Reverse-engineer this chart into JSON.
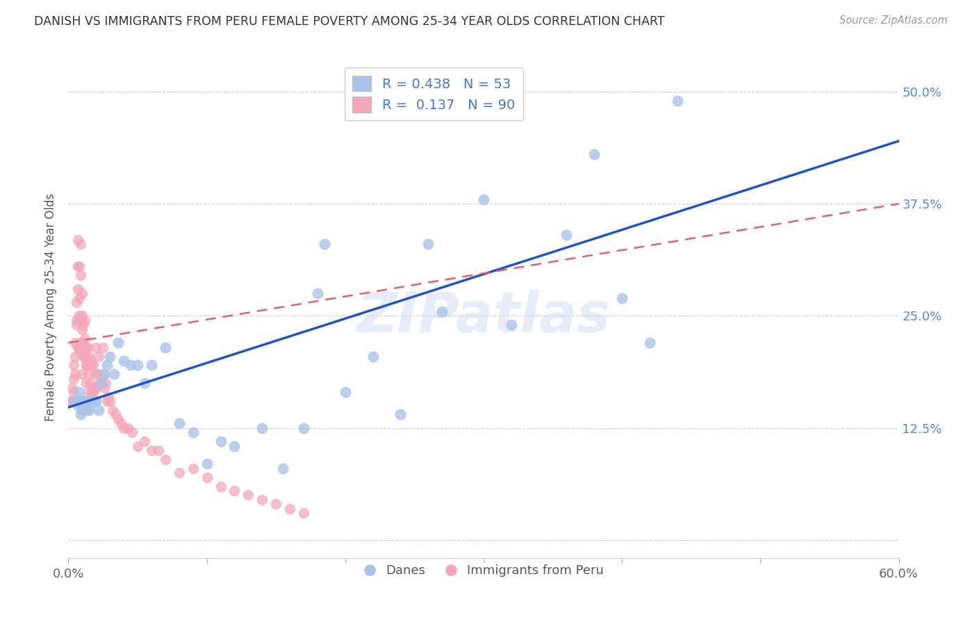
{
  "title": "DANISH VS IMMIGRANTS FROM PERU FEMALE POVERTY AMONG 25-34 YEAR OLDS CORRELATION CHART",
  "source": "Source: ZipAtlas.com",
  "ylabel": "Female Poverty Among 25-34 Year Olds",
  "xlim": [
    0.0,
    0.6
  ],
  "ylim": [
    -0.02,
    0.54
  ],
  "xticks": [
    0.0,
    0.1,
    0.2,
    0.3,
    0.4,
    0.5,
    0.6
  ],
  "xticklabels": [
    "0.0%",
    "",
    "",
    "",
    "",
    "",
    "60.0%"
  ],
  "ytick_positions": [
    0.0,
    0.125,
    0.25,
    0.375,
    0.5
  ],
  "ytick_labels_right": [
    "",
    "12.5%",
    "25.0%",
    "37.5%",
    "50.0%"
  ],
  "danes_color": "#aac4e8",
  "peru_color": "#f4a7b9",
  "danes_line_color": "#2255bb",
  "peru_line_color": "#e06070",
  "watermark": "ZIPatlas",
  "danes_x": [
    0.005,
    0.006,
    0.007,
    0.008,
    0.009,
    0.009,
    0.01,
    0.01,
    0.011,
    0.012,
    0.013,
    0.014,
    0.015,
    0.016,
    0.017,
    0.018,
    0.019,
    0.02,
    0.022,
    0.024,
    0.026,
    0.028,
    0.03,
    0.033,
    0.036,
    0.04,
    0.045,
    0.05,
    0.055,
    0.06,
    0.07,
    0.08,
    0.09,
    0.1,
    0.11,
    0.12,
    0.14,
    0.155,
    0.17,
    0.185,
    0.2,
    0.22,
    0.24,
    0.27,
    0.3,
    0.32,
    0.36,
    0.4,
    0.42,
    0.44,
    0.18,
    0.26,
    0.38
  ],
  "danes_y": [
    0.155,
    0.155,
    0.15,
    0.165,
    0.155,
    0.14,
    0.155,
    0.145,
    0.155,
    0.155,
    0.145,
    0.15,
    0.145,
    0.155,
    0.155,
    0.155,
    0.155,
    0.155,
    0.145,
    0.175,
    0.185,
    0.195,
    0.205,
    0.185,
    0.22,
    0.2,
    0.195,
    0.195,
    0.175,
    0.195,
    0.215,
    0.13,
    0.12,
    0.085,
    0.11,
    0.105,
    0.125,
    0.08,
    0.125,
    0.33,
    0.165,
    0.205,
    0.14,
    0.255,
    0.38,
    0.24,
    0.34,
    0.27,
    0.22,
    0.49,
    0.275,
    0.33,
    0.43
  ],
  "peru_x": [
    0.002,
    0.003,
    0.003,
    0.004,
    0.004,
    0.004,
    0.005,
    0.005,
    0.006,
    0.006,
    0.007,
    0.007,
    0.007,
    0.008,
    0.008,
    0.008,
    0.009,
    0.009,
    0.009,
    0.009,
    0.01,
    0.01,
    0.01,
    0.01,
    0.011,
    0.011,
    0.012,
    0.012,
    0.012,
    0.013,
    0.013,
    0.013,
    0.014,
    0.014,
    0.015,
    0.015,
    0.015,
    0.016,
    0.016,
    0.017,
    0.017,
    0.018,
    0.018,
    0.019,
    0.02,
    0.02,
    0.021,
    0.022,
    0.023,
    0.024,
    0.025,
    0.026,
    0.027,
    0.028,
    0.029,
    0.03,
    0.032,
    0.034,
    0.036,
    0.038,
    0.04,
    0.043,
    0.046,
    0.05,
    0.055,
    0.06,
    0.065,
    0.07,
    0.08,
    0.09,
    0.1,
    0.11,
    0.12,
    0.13,
    0.14,
    0.15,
    0.16,
    0.17,
    0.02,
    0.025,
    0.005,
    0.006,
    0.007,
    0.008,
    0.009,
    0.01,
    0.011,
    0.012,
    0.013,
    0.014
  ],
  "peru_y": [
    0.155,
    0.155,
    0.17,
    0.165,
    0.195,
    0.18,
    0.22,
    0.205,
    0.265,
    0.245,
    0.335,
    0.305,
    0.28,
    0.305,
    0.27,
    0.25,
    0.33,
    0.295,
    0.245,
    0.22,
    0.275,
    0.25,
    0.235,
    0.185,
    0.24,
    0.21,
    0.245,
    0.225,
    0.205,
    0.215,
    0.195,
    0.175,
    0.215,
    0.2,
    0.205,
    0.185,
    0.165,
    0.2,
    0.175,
    0.195,
    0.165,
    0.195,
    0.165,
    0.17,
    0.185,
    0.17,
    0.185,
    0.205,
    0.175,
    0.175,
    0.185,
    0.17,
    0.175,
    0.155,
    0.16,
    0.155,
    0.145,
    0.14,
    0.135,
    0.13,
    0.125,
    0.125,
    0.12,
    0.105,
    0.11,
    0.1,
    0.1,
    0.09,
    0.075,
    0.08,
    0.07,
    0.06,
    0.055,
    0.05,
    0.045,
    0.04,
    0.035,
    0.03,
    0.215,
    0.215,
    0.185,
    0.24,
    0.215,
    0.215,
    0.21,
    0.22,
    0.205,
    0.205,
    0.195,
    0.195
  ]
}
